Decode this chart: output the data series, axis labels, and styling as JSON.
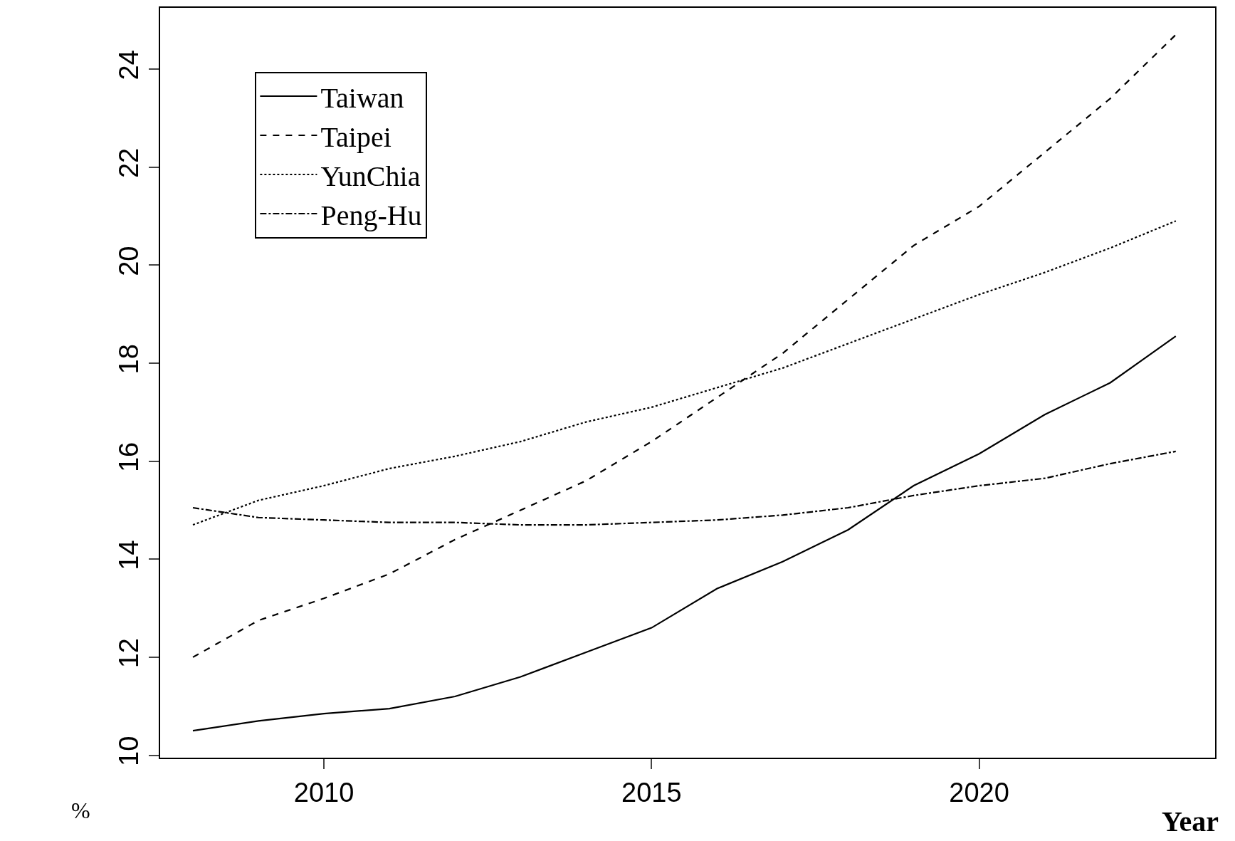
{
  "chart_data": {
    "type": "line",
    "xlabel": "Year",
    "ylabel": "%",
    "x": [
      2008,
      2009,
      2010,
      2011,
      2012,
      2013,
      2014,
      2015,
      2016,
      2017,
      2018,
      2019,
      2020,
      2021,
      2022,
      2023
    ],
    "series": [
      {
        "name": "Taiwan",
        "color": "#000000",
        "line_style": "solid",
        "values": [
          10.5,
          10.7,
          10.85,
          10.95,
          11.2,
          11.6,
          12.1,
          12.6,
          13.4,
          13.95,
          14.6,
          15.5,
          16.15,
          16.95,
          17.6,
          18.55
        ]
      },
      {
        "name": "Taipei",
        "color": "#000000",
        "line_style": "dashed",
        "values": [
          12.0,
          12.75,
          13.2,
          13.7,
          14.4,
          15.0,
          15.6,
          16.4,
          17.3,
          18.2,
          19.3,
          20.4,
          21.2,
          22.3,
          23.4,
          24.7
        ]
      },
      {
        "name": "YunChia",
        "color": "#000000",
        "line_style": "dotted",
        "values": [
          14.7,
          15.2,
          15.5,
          15.85,
          16.1,
          16.4,
          16.8,
          17.1,
          17.5,
          17.9,
          18.4,
          18.9,
          19.4,
          19.85,
          20.35,
          20.9
        ]
      },
      {
        "name": "Peng-Hu",
        "color": "#000000",
        "line_style": "dashdot",
        "values": [
          15.05,
          14.85,
          14.8,
          14.75,
          14.75,
          14.7,
          14.7,
          14.75,
          14.8,
          14.9,
          15.05,
          15.3,
          15.5,
          15.65,
          15.95,
          16.2
        ]
      }
    ],
    "xlim": [
      2007.5,
      2023.6
    ],
    "xticks": [
      2010,
      2015,
      2020
    ],
    "ylim": [
      9.95,
      25.25
    ],
    "yticks": [
      10,
      12,
      14,
      16,
      18,
      20,
      22,
      24
    ],
    "grid": false,
    "legend": "top left",
    "marker": "none"
  }
}
